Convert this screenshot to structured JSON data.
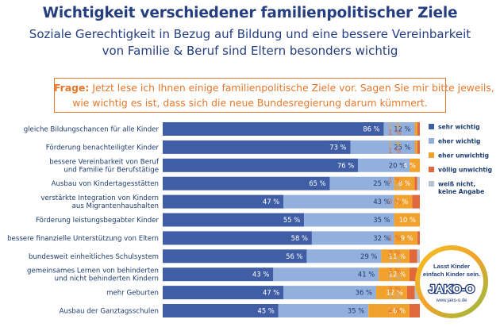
{
  "title": "Wichtigkeit verschiedener familienpolitischer Ziele",
  "subtitle_line1": "Soziale Gerechtigkeit in Bezug auf Bildung und eine bessere Vereinbarkeit",
  "subtitle_line2": "von Familie & Beruf sind Eltern besonders wichtig",
  "question": {
    "label": "Frage:",
    "line1": "Jetzt lese ich Ihnen einige familienpolitische Ziele vor. Sagen Sie mir bitte jeweils,",
    "line2": "wie wichtig es ist, dass sich die neue Bundesregierung darum kümmert."
  },
  "colors": {
    "title": "#243e80",
    "accent_orange": "#e7782b",
    "sehr_wichtig": "#3f5ea6",
    "eher_wichtig": "#93b0dc",
    "eher_unwichtig": "#f0a22d",
    "voellig_unwichtig": "#e0683a",
    "weiss_nicht": "#b8c2cf"
  },
  "chart_data": {
    "type": "bar",
    "stacked": true,
    "orientation": "horizontal",
    "title": "Wichtigkeit verschiedener familienpolitischer Ziele",
    "unit": "%",
    "xlim": [
      0,
      100
    ],
    "categories": [
      [
        "gleiche Bildungschancen für alle Kinder"
      ],
      [
        "Förderung benachteiligter Kinder"
      ],
      [
        "bessere Vereinbarkeit von Beruf",
        "und Familie für Berufstätige"
      ],
      [
        "Ausbau von Kindertagesstätten"
      ],
      [
        "verstärkte Integration von Kindern",
        "aus Migrantenhaushalten"
      ],
      [
        "Förderung leistungsbegabter Kinder"
      ],
      [
        "bessere finanzielle Unterstützung von Eltern"
      ],
      [
        "bundesweit einheitliches Schulsystem"
      ],
      [
        "gemeinsames Lernen von behinderten",
        "und nicht behinderten Kindern"
      ],
      [
        "mehr Geburten"
      ],
      [
        "Ausbau der Ganztagsschulen"
      ]
    ],
    "series": [
      {
        "name": "sehr wichtig",
        "color": "#3f5ea6",
        "values": [
          86,
          73,
          76,
          65,
          47,
          55,
          58,
          56,
          43,
          47,
          45
        ]
      },
      {
        "name": "eher wichtig",
        "color": "#93b0dc",
        "values": [
          12,
          25,
          20,
          25,
          43,
          35,
          32,
          29,
          41,
          36,
          35
        ]
      },
      {
        "name": "eher unwichtig",
        "color": "#f0a22d",
        "values": [
          1,
          1,
          4,
          8,
          7,
          10,
          9,
          11,
          12,
          12,
          16
        ]
      },
      {
        "name": "völlig unwichtig",
        "color": "#e0683a",
        "values": [
          1,
          1,
          0,
          1,
          3,
          0,
          1,
          3,
          3,
          3,
          4
        ]
      },
      {
        "name": "weiß nicht, keine Angabe",
        "color": "#b8c2cf",
        "values": [
          0,
          0,
          0,
          1,
          0,
          0,
          0,
          1,
          1,
          2,
          0
        ]
      }
    ],
    "legend": [
      [
        "sehr wichtig"
      ],
      [
        "eher wichtig"
      ],
      [
        "eher unwichtig"
      ],
      [
        "völlig unwichtig"
      ],
      [
        "weiß nicht,",
        "keine Angabe"
      ]
    ],
    "legend_position": "right"
  },
  "badge": {
    "line1": "Lasst Kinder",
    "line2": "einfach Kinder sein.",
    "logo": "JAKO-O",
    "url": "www.jako-o.de"
  }
}
